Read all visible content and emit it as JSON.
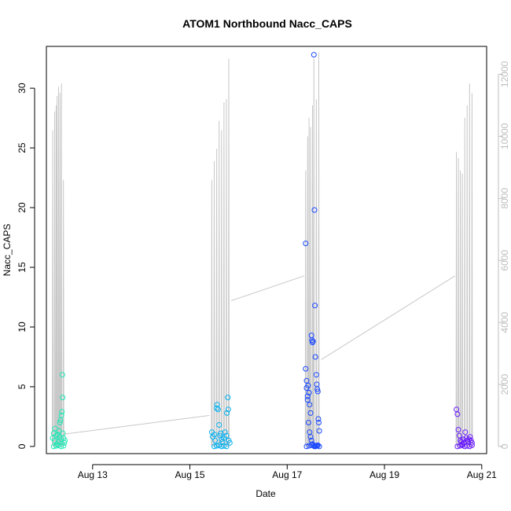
{
  "chart_data": {
    "type": "scatter",
    "title": "ATOM1 Northbound Nacc_CAPS",
    "xlabel": "Date",
    "ylabel": "Nacc_CAPS",
    "x_ticks": [
      {
        "day": 13,
        "label": "Aug 13"
      },
      {
        "day": 15,
        "label": "Aug 15"
      },
      {
        "day": 17,
        "label": "Aug 17"
      },
      {
        "day": 19,
        "label": "Aug 19"
      },
      {
        "day": 21,
        "label": "Aug 21"
      }
    ],
    "xlim": [
      12.05,
      21.1
    ],
    "ylim_left": [
      -0.6,
      33.5
    ],
    "ylim_right": [
      -230,
      12900
    ],
    "left_ticks": [
      0,
      5,
      10,
      15,
      20,
      25,
      30
    ],
    "right_ticks": [
      0,
      2000,
      4000,
      6000,
      8000,
      10000,
      12000
    ],
    "right_axis_color": "#bdbdbd",
    "line_color": "#c8c8c8",
    "series": [
      {
        "color": "#1de9b6",
        "x_range": [
          12.15,
          12.45
        ],
        "points": [
          [
            12.18,
            0.7
          ],
          [
            12.2,
            1.1
          ],
          [
            12.22,
            0.5
          ],
          [
            12.23,
            1.5
          ],
          [
            12.25,
            0.9
          ],
          [
            12.27,
            0.2
          ],
          [
            12.28,
            1.0
          ],
          [
            12.3,
            0.4
          ],
          [
            12.31,
            1.3
          ],
          [
            12.32,
            0.8
          ],
          [
            12.33,
            2.0
          ],
          [
            12.34,
            2.2
          ],
          [
            12.35,
            0.6
          ],
          [
            12.36,
            2.6
          ],
          [
            12.37,
            2.9
          ],
          [
            12.38,
            6.0
          ],
          [
            12.385,
            4.1
          ],
          [
            12.39,
            1.1
          ],
          [
            12.4,
            0.7
          ],
          [
            12.42,
            0.3
          ],
          [
            12.43,
            0.5
          ],
          [
            12.2,
            0.0
          ],
          [
            12.25,
            0.05
          ],
          [
            12.3,
            0.1
          ],
          [
            12.35,
            0.0
          ],
          [
            12.4,
            0.05
          ]
        ],
        "line_spikes": [
          [
            12.18,
            10200
          ],
          [
            12.22,
            10800
          ],
          [
            12.25,
            11000
          ],
          [
            12.27,
            11300
          ],
          [
            12.3,
            11600
          ],
          [
            12.33,
            11400
          ],
          [
            12.36,
            11700
          ],
          [
            12.4,
            8600
          ]
        ]
      },
      {
        "color": "#00b0f0",
        "x_range": [
          15.4,
          15.85
        ],
        "points": [
          [
            15.45,
            1.2
          ],
          [
            15.47,
            0.8
          ],
          [
            15.5,
            1.0
          ],
          [
            15.52,
            0.5
          ],
          [
            15.55,
            3.2
          ],
          [
            15.56,
            3.5
          ],
          [
            15.58,
            3.1
          ],
          [
            15.6,
            1.8
          ],
          [
            15.62,
            0.9
          ],
          [
            15.63,
            1.1
          ],
          [
            15.65,
            0.6
          ],
          [
            15.67,
            0.4
          ],
          [
            15.7,
            0.7
          ],
          [
            15.72,
            1.2
          ],
          [
            15.75,
            0.9
          ],
          [
            15.76,
            2.8
          ],
          [
            15.78,
            4.1
          ],
          [
            15.79,
            3.1
          ],
          [
            15.8,
            0.5
          ],
          [
            15.82,
            0.3
          ],
          [
            15.5,
            0.0
          ],
          [
            15.55,
            0.05
          ],
          [
            15.6,
            0.1
          ],
          [
            15.65,
            0.0
          ],
          [
            15.7,
            0.05
          ],
          [
            15.75,
            0.0
          ]
        ],
        "line_spikes": [
          [
            15.45,
            8600
          ],
          [
            15.5,
            9200
          ],
          [
            15.55,
            9600
          ],
          [
            15.6,
            10500
          ],
          [
            15.65,
            10200
          ],
          [
            15.7,
            11100
          ],
          [
            15.75,
            11200
          ],
          [
            15.8,
            12500
          ]
        ]
      },
      {
        "color": "#1a48ff",
        "x_range": [
          17.35,
          17.7
        ],
        "points": [
          [
            17.38,
            17.0
          ],
          [
            17.4,
            4.9
          ],
          [
            17.42,
            4.2
          ],
          [
            17.43,
            5.1
          ],
          [
            17.45,
            4.5
          ],
          [
            17.46,
            3.5
          ],
          [
            17.48,
            2.8
          ],
          [
            17.5,
            9.3
          ],
          [
            17.51,
            8.9
          ],
          [
            17.52,
            8.7
          ],
          [
            17.53,
            8.8
          ],
          [
            17.55,
            32.8
          ],
          [
            17.56,
            19.8
          ],
          [
            17.57,
            11.8
          ],
          [
            17.58,
            7.5
          ],
          [
            17.6,
            6.0
          ],
          [
            17.61,
            5.2
          ],
          [
            17.62,
            4.8
          ],
          [
            17.63,
            4.6
          ],
          [
            17.64,
            2.3
          ],
          [
            17.65,
            2.0
          ],
          [
            17.66,
            1.3
          ],
          [
            17.38,
            6.5
          ],
          [
            17.4,
            5.5
          ],
          [
            17.42,
            3.9
          ],
          [
            17.44,
            2.0
          ],
          [
            17.46,
            1.2
          ],
          [
            17.48,
            0.8
          ],
          [
            17.5,
            0.5
          ],
          [
            17.52,
            0.2
          ],
          [
            17.55,
            0.1
          ],
          [
            17.58,
            0.0
          ],
          [
            17.6,
            0.05
          ],
          [
            17.63,
            0.1
          ],
          [
            17.66,
            0.0
          ],
          [
            17.4,
            0.0
          ],
          [
            17.45,
            0.05
          ],
          [
            17.5,
            0.1
          ],
          [
            17.56,
            0.0
          ],
          [
            17.62,
            0.05
          ]
        ],
        "line_spikes": [
          [
            17.38,
            8900
          ],
          [
            17.42,
            10000
          ],
          [
            17.45,
            10600
          ],
          [
            17.48,
            10300
          ],
          [
            17.52,
            11000
          ],
          [
            17.55,
            12500
          ],
          [
            17.6,
            11200
          ],
          [
            17.65,
            12700
          ]
        ]
      },
      {
        "color": "#6a1aff",
        "x_range": [
          20.45,
          20.85
        ],
        "points": [
          [
            20.48,
            3.1
          ],
          [
            20.5,
            2.7
          ],
          [
            20.52,
            1.4
          ],
          [
            20.54,
            0.9
          ],
          [
            20.56,
            0.5
          ],
          [
            20.58,
            0.4
          ],
          [
            20.6,
            0.2
          ],
          [
            20.62,
            0.6
          ],
          [
            20.64,
            0.3
          ],
          [
            20.66,
            1.2
          ],
          [
            20.68,
            0.7
          ],
          [
            20.7,
            0.5
          ],
          [
            20.72,
            0.4
          ],
          [
            20.74,
            0.6
          ],
          [
            20.76,
            0.8
          ],
          [
            20.78,
            0.5
          ],
          [
            20.8,
            0.3
          ],
          [
            20.5,
            0.0
          ],
          [
            20.55,
            0.05
          ],
          [
            20.6,
            0.1
          ],
          [
            20.65,
            0.0
          ],
          [
            20.7,
            0.05
          ],
          [
            20.75,
            0.0
          ],
          [
            20.8,
            0.1
          ]
        ],
        "line_spikes": [
          [
            20.48,
            9500
          ],
          [
            20.52,
            9300
          ],
          [
            20.56,
            8900
          ],
          [
            20.6,
            8800
          ],
          [
            20.65,
            10600
          ],
          [
            20.7,
            11000
          ],
          [
            20.75,
            11700
          ],
          [
            20.8,
            11400
          ]
        ]
      }
    ],
    "connectors": [
      [
        12.42,
        400
      ],
      [
        15.4,
        1000
      ],
      [
        15.85,
        4700
      ],
      [
        17.35,
        5500
      ],
      [
        17.7,
        2800
      ],
      [
        20.45,
        5500
      ]
    ]
  }
}
